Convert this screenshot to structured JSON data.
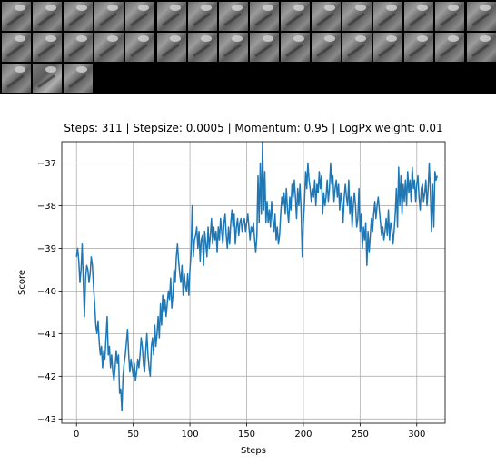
{
  "thumbnails": {
    "count": 35,
    "highlighted_index": 33
  },
  "chart_data": {
    "type": "line",
    "title": "Steps: 311 | Stepsize: 0.0005 | Momentum: 0.95 | LogPx weight: 0.01",
    "xlabel": "Steps",
    "ylabel": "Score",
    "xlim": [
      -13,
      325
    ],
    "ylim": [
      -43.1,
      -36.5
    ],
    "xticks": [
      0,
      50,
      100,
      150,
      200,
      250,
      300
    ],
    "yticks": [
      -43,
      -42,
      -41,
      -40,
      -39,
      -38,
      -37
    ],
    "grid": true,
    "line_color": "#1f77b4",
    "series": [
      {
        "values": [
          -39.2,
          -39.0,
          -39.3,
          -39.8,
          -39.5,
          -38.9,
          -39.8,
          -40.6,
          -39.7,
          -39.4,
          -39.5,
          -39.8,
          -39.6,
          -39.2,
          -39.4,
          -39.9,
          -40.3,
          -40.8,
          -41.0,
          -40.7,
          -41.2,
          -41.5,
          -41.3,
          -41.8,
          -41.4,
          -41.6,
          -41.1,
          -40.6,
          -41.5,
          -41.3,
          -41.8,
          -41.5,
          -41.9,
          -42.1,
          -41.8,
          -41.4,
          -41.7,
          -41.5,
          -42.4,
          -42.3,
          -42.8,
          -42.0,
          -41.7,
          -41.5,
          -41.2,
          -40.9,
          -41.5,
          -41.9,
          -41.6,
          -41.8,
          -42.0,
          -41.7,
          -42.1,
          -41.9,
          -41.6,
          -41.8,
          -41.5,
          -41.1,
          -41.3,
          -41.7,
          -41.9,
          -41.4,
          -41.0,
          -41.5,
          -41.8,
          -42.0,
          -41.3,
          -41.1,
          -41.5,
          -40.8,
          -41.3,
          -41.0,
          -40.6,
          -41.1,
          -40.3,
          -40.8,
          -40.1,
          -40.5,
          -40.2,
          -40.6,
          -40.3,
          -40.0,
          -40.2,
          -39.7,
          -40.4,
          -40.1,
          -39.5,
          -39.8,
          -39.2,
          -38.9,
          -39.3,
          -39.6,
          -39.8,
          -39.4,
          -40.1,
          -39.6,
          -39.9,
          -40.0,
          -39.6,
          -40.1,
          -39.5,
          -39.1,
          -38.0,
          -39.2,
          -38.8,
          -38.7,
          -38.5,
          -39.0,
          -38.6,
          -39.3,
          -38.8,
          -38.7,
          -39.4,
          -38.6,
          -38.9,
          -39.2,
          -38.5,
          -39.0,
          -38.7,
          -38.3,
          -38.9,
          -38.5,
          -38.8,
          -38.6,
          -39.1,
          -38.5,
          -38.8,
          -38.3,
          -38.6,
          -38.9,
          -38.4,
          -38.2,
          -38.7,
          -39.0,
          -38.5,
          -38.9,
          -38.4,
          -38.1,
          -38.5,
          -38.2,
          -38.9,
          -38.5,
          -38.3,
          -38.7,
          -38.4,
          -38.3,
          -38.6,
          -38.4,
          -38.3,
          -38.6,
          -38.4,
          -38.2,
          -38.5,
          -38.8,
          -38.5,
          -38.6,
          -38.4,
          -38.8,
          -39.1,
          -38.7,
          -37.3,
          -38.4,
          -37.0,
          -38.2,
          -36.5,
          -38.1,
          -37.2,
          -38.4,
          -37.9,
          -38.4,
          -38.1,
          -38.5,
          -37.9,
          -38.3,
          -38.6,
          -38.2,
          -38.8,
          -38.5,
          -38.9,
          -38.7,
          -38.2,
          -37.8,
          -38.0,
          -37.7,
          -38.2,
          -37.6,
          -38.1,
          -38.4,
          -37.8,
          -38.1,
          -37.5,
          -37.8,
          -37.4,
          -37.8,
          -38.3,
          -37.6,
          -38.0,
          -37.5,
          -38.1,
          -39.2,
          -38.4,
          -37.9,
          -37.2,
          -37.6,
          -37.0,
          -37.4,
          -37.6,
          -37.9,
          -37.6,
          -37.8,
          -37.4,
          -38.0,
          -37.5,
          -37.7,
          -37.2,
          -37.6,
          -37.3,
          -38.2,
          -37.7,
          -38.0,
          -37.8,
          -37.4,
          -37.9,
          -37.6,
          -37.0,
          -37.5,
          -37.3,
          -37.9,
          -37.6,
          -37.4,
          -37.8,
          -37.5,
          -38.1,
          -37.7,
          -37.9,
          -38.4,
          -37.8,
          -37.5,
          -37.8,
          -38.0,
          -37.4,
          -38.2,
          -37.8,
          -38.5,
          -38.0,
          -37.7,
          -38.0,
          -38.5,
          -38.3,
          -37.6,
          -38.6,
          -38.2,
          -39.0,
          -38.5,
          -38.8,
          -38.4,
          -39.4,
          -38.6,
          -39.1,
          -38.7,
          -38.3,
          -38.6,
          -38.2,
          -37.9,
          -38.3,
          -38.0,
          -37.8,
          -38.1,
          -38.4,
          -38.7,
          -38.5,
          -38.8,
          -38.6,
          -38.3,
          -38.7,
          -38.1,
          -38.8,
          -38.4,
          -38.5,
          -38.9,
          -38.6,
          -38.2,
          -37.6,
          -38.5,
          -37.1,
          -38.0,
          -37.3,
          -38.2,
          -37.5,
          -37.9,
          -37.4,
          -38.0,
          -37.2,
          -37.7,
          -37.4,
          -37.9,
          -37.1,
          -37.6,
          -37.4,
          -37.9,
          -37.5,
          -37.3,
          -37.8,
          -38.1,
          -37.6,
          -37.5,
          -37.9,
          -37.7,
          -37.4,
          -38.0,
          -37.6,
          -37.0,
          -37.7,
          -38.6,
          -37.5,
          -38.5,
          -37.2,
          -37.4,
          -37.3
        ]
      }
    ]
  }
}
